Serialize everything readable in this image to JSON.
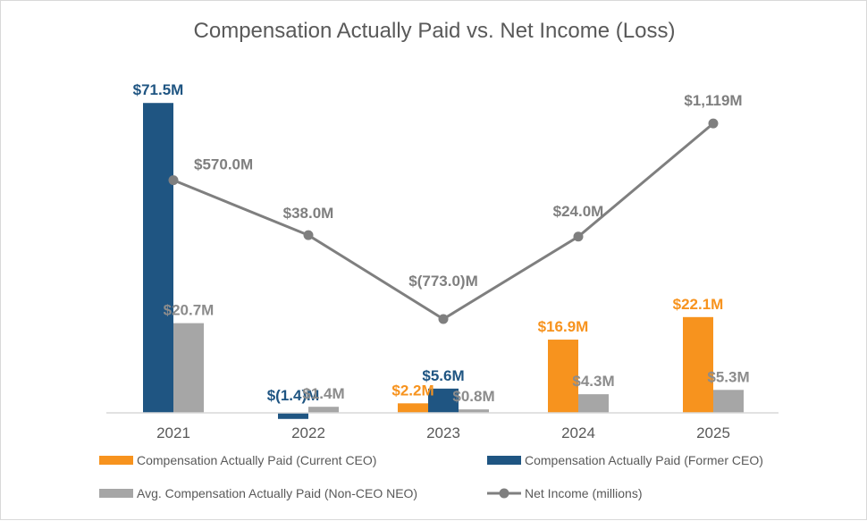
{
  "chart_data": {
    "type": "bar",
    "title": "Compensation Actually Paid vs. Net Income (Loss)",
    "categories": [
      "2021",
      "2022",
      "2023",
      "2024",
      "2025"
    ],
    "series": [
      {
        "name": "Compensation Actually Paid (Current CEO)",
        "kind": "bar",
        "color": "#F7931E",
        "values": [
          null,
          null,
          2.2,
          16.9,
          22.1
        ],
        "labels": [
          null,
          null,
          "$2.2M",
          "$16.9M",
          "$22.1M"
        ]
      },
      {
        "name": "Compensation Actually Paid (Former CEO)",
        "kind": "bar",
        "color": "#1F5582",
        "values": [
          71.5,
          -1.4,
          5.6,
          null,
          null
        ],
        "labels": [
          "$71.5M",
          "$(1.4)M",
          "$5.6M",
          null,
          null
        ]
      },
      {
        "name": "Avg. Compensation Actually Paid (Non-CEO NEO)",
        "kind": "bar",
        "color": "#A6A6A6",
        "values": [
          20.7,
          1.4,
          0.8,
          4.3,
          5.3
        ],
        "labels": [
          "$20.7M",
          "$1.4M",
          "$0.8M",
          "$4.3M",
          "$5.3M"
        ]
      },
      {
        "name": "Net Income (millions)",
        "kind": "line",
        "color": "#7F7F7F",
        "values": [
          570.0,
          38.0,
          -773.0,
          24.0,
          1119
        ],
        "labels": [
          "$570.0M",
          "$38.0M",
          "$(773.0)M",
          "$24.0M",
          "$1,119M"
        ]
      }
    ],
    "legend_position": "bottom",
    "grid": false
  }
}
